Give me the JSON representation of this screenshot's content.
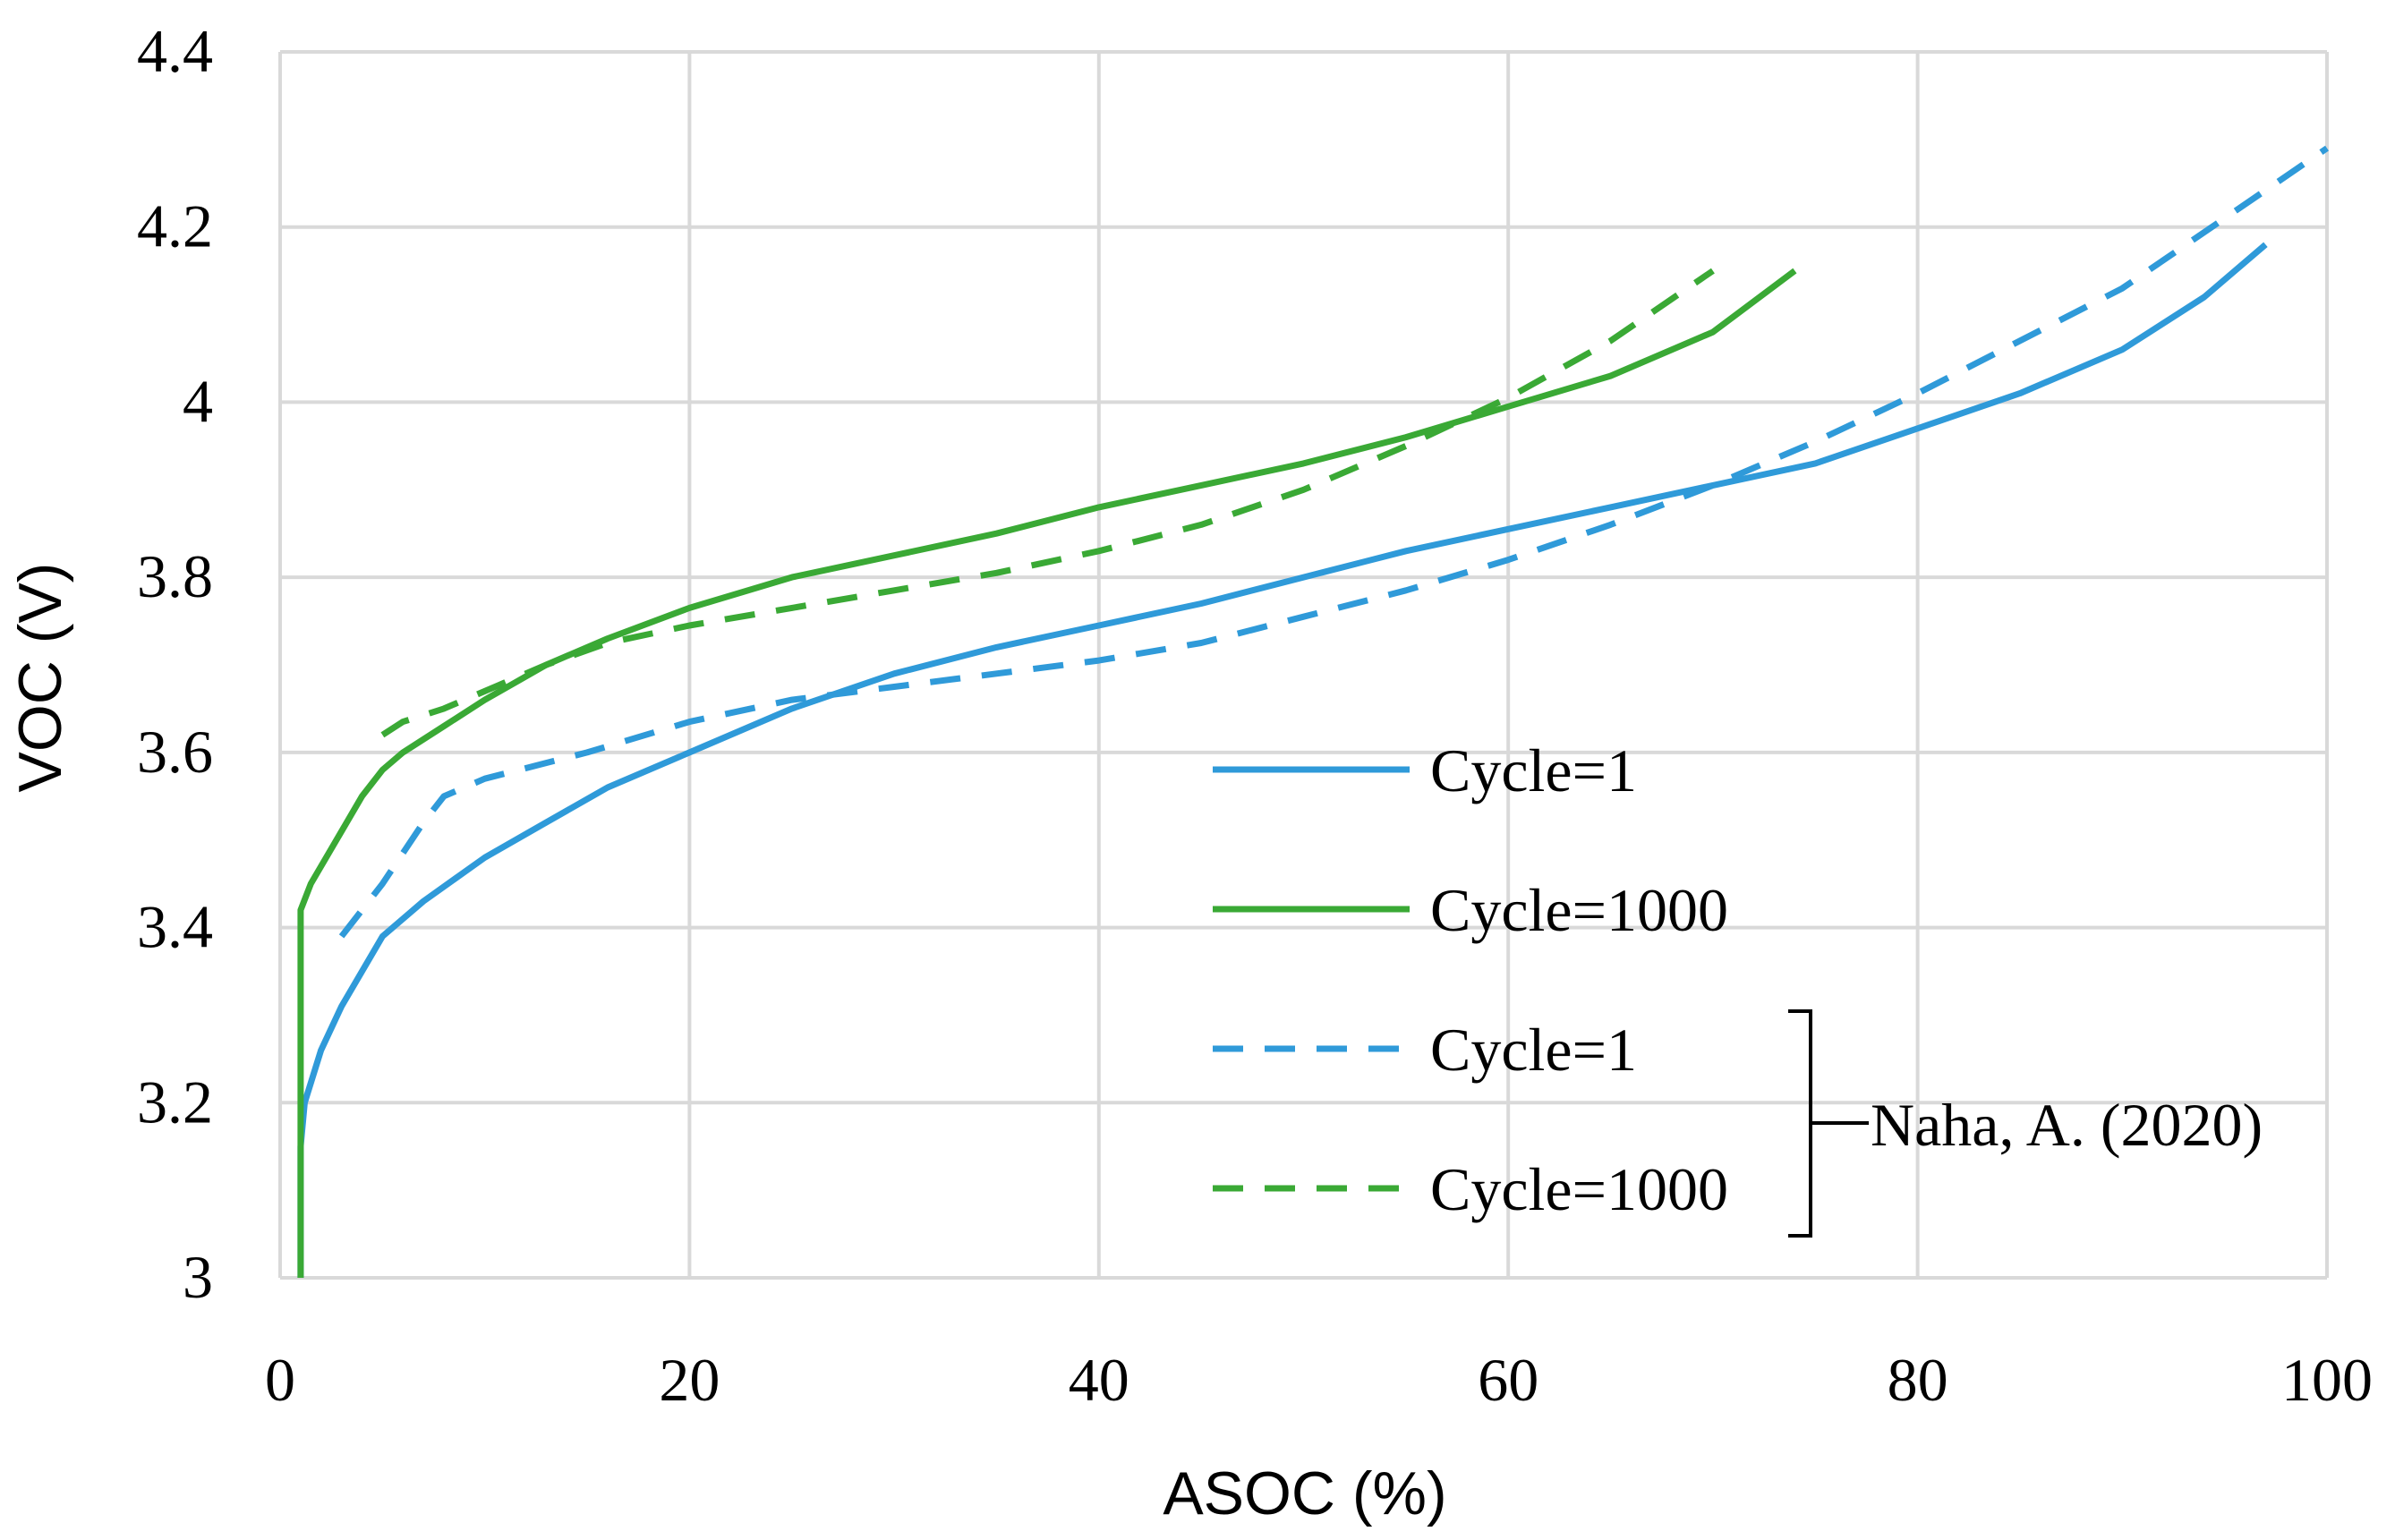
{
  "chart_data": {
    "type": "line",
    "title": "",
    "xlabel": "ASOC (%)",
    "ylabel": "VOC (V)",
    "xlim": [
      0,
      100
    ],
    "ylim": [
      3,
      4.4
    ],
    "x_ticks": [
      0,
      20,
      40,
      60,
      80,
      100
    ],
    "y_ticks": [
      3,
      3.2,
      3.4,
      3.6,
      3.8,
      4,
      4.2,
      4.4
    ],
    "x_tick_labels": [
      "0",
      "20",
      "40",
      "60",
      "80",
      "100"
    ],
    "y_tick_labels": [
      "3",
      "3.2",
      "3.4",
      "3.6",
      "3.8",
      "4",
      "4.2",
      "4.4"
    ],
    "grid": true,
    "legend_position": "center-right",
    "series": [
      {
        "name": "Cycle=1",
        "style": "solid",
        "color": "#2f9ad9",
        "points": [
          [
            1,
            3.0
          ],
          [
            1,
            3.15
          ],
          [
            1.2,
            3.2
          ],
          [
            2,
            3.26
          ],
          [
            3,
            3.31
          ],
          [
            4,
            3.35
          ],
          [
            5,
            3.39
          ],
          [
            7,
            3.43
          ],
          [
            10,
            3.48
          ],
          [
            13,
            3.52
          ],
          [
            16,
            3.56
          ],
          [
            20,
            3.6
          ],
          [
            25,
            3.65
          ],
          [
            30,
            3.69
          ],
          [
            35,
            3.72
          ],
          [
            40,
            3.745
          ],
          [
            45,
            3.77
          ],
          [
            50,
            3.8
          ],
          [
            55,
            3.83
          ],
          [
            60,
            3.855
          ],
          [
            65,
            3.88
          ],
          [
            70,
            3.905
          ],
          [
            75,
            3.93
          ],
          [
            80,
            3.97
          ],
          [
            85,
            4.01
          ],
          [
            90,
            4.06
          ],
          [
            94,
            4.12
          ],
          [
            97,
            4.18
          ]
        ]
      },
      {
        "name": "Cycle=1000",
        "style": "solid",
        "color": "#3aa935",
        "points": [
          [
            1,
            3.0
          ],
          [
            1,
            3.42
          ],
          [
            1.5,
            3.45
          ],
          [
            2.5,
            3.49
          ],
          [
            4,
            3.55
          ],
          [
            5,
            3.58
          ],
          [
            6,
            3.6
          ],
          [
            8,
            3.63
          ],
          [
            10,
            3.66
          ],
          [
            13,
            3.7
          ],
          [
            16,
            3.73
          ],
          [
            20,
            3.765
          ],
          [
            25,
            3.8
          ],
          [
            30,
            3.825
          ],
          [
            35,
            3.85
          ],
          [
            40,
            3.88
          ],
          [
            45,
            3.905
          ],
          [
            50,
            3.93
          ],
          [
            55,
            3.96
          ],
          [
            60,
            3.995
          ],
          [
            65,
            4.03
          ],
          [
            70,
            4.08
          ],
          [
            74,
            4.15
          ]
        ]
      },
      {
        "name": "Cycle=1",
        "style": "dashed",
        "color": "#2f9ad9",
        "points": [
          [
            3,
            3.39
          ],
          [
            5,
            3.45
          ],
          [
            7,
            3.52
          ],
          [
            8,
            3.55
          ],
          [
            10,
            3.57
          ],
          [
            15,
            3.6
          ],
          [
            20,
            3.635
          ],
          [
            25,
            3.66
          ],
          [
            30,
            3.675
          ],
          [
            35,
            3.69
          ],
          [
            40,
            3.705
          ],
          [
            45,
            3.725
          ],
          [
            50,
            3.755
          ],
          [
            55,
            3.785
          ],
          [
            60,
            3.82
          ],
          [
            65,
            3.86
          ],
          [
            70,
            3.905
          ],
          [
            75,
            3.955
          ],
          [
            80,
            4.01
          ],
          [
            85,
            4.07
          ],
          [
            90,
            4.13
          ],
          [
            95,
            4.21
          ],
          [
            100,
            4.29
          ]
        ]
      },
      {
        "name": "Cycle=1000",
        "style": "dashed",
        "color": "#3aa935",
        "points": [
          [
            5,
            3.62
          ],
          [
            6,
            3.635
          ],
          [
            8,
            3.65
          ],
          [
            10,
            3.67
          ],
          [
            13,
            3.7
          ],
          [
            16,
            3.725
          ],
          [
            20,
            3.745
          ],
          [
            25,
            3.765
          ],
          [
            30,
            3.785
          ],
          [
            35,
            3.805
          ],
          [
            40,
            3.83
          ],
          [
            45,
            3.86
          ],
          [
            50,
            3.9
          ],
          [
            55,
            3.95
          ],
          [
            60,
            4.005
          ],
          [
            65,
            4.07
          ],
          [
            70,
            4.15
          ]
        ]
      }
    ],
    "legend": [
      {
        "label": "Cycle=1",
        "style": "solid",
        "color": "#2f9ad9"
      },
      {
        "label": "Cycle=1000",
        "style": "solid",
        "color": "#3aa935"
      },
      {
        "label": "Cycle=1",
        "style": "dashed",
        "color": "#2f9ad9"
      },
      {
        "label": "Cycle=1000",
        "style": "dashed",
        "color": "#3aa935"
      }
    ],
    "annotation": "Naha, A. (2020)"
  },
  "colors": {
    "grid": "#d9d9d9",
    "cycle1": "#2f9ad9",
    "cycle1000": "#3aa935"
  }
}
